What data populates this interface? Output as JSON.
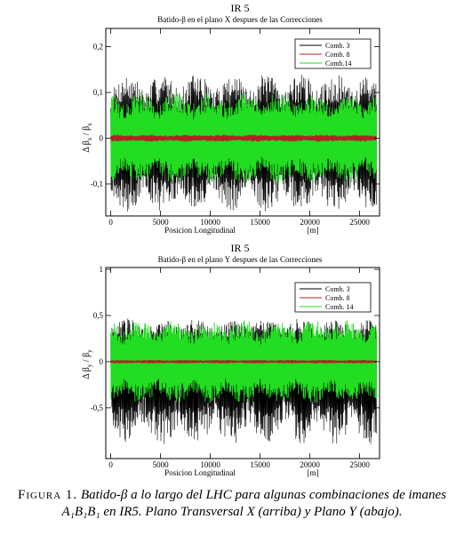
{
  "chart_data": [
    {
      "type": "line",
      "title": "IR 5",
      "subtitle": "Batido-β en el plano X despues de las Correcciones",
      "xlabel": "Posicion Longitudinal",
      "xunit": "[m]",
      "ylabel_main": "Δ β",
      "ylabel_sub1": "x",
      "ylabel_mid": " / β",
      "ylabel_sub2": "x",
      "xlim": [
        -500,
        27000
      ],
      "ylim": [
        -0.17,
        0.24
      ],
      "xticks": [
        0,
        5000,
        10000,
        15000,
        20000,
        25000
      ],
      "xtick_labels": [
        "0",
        "5000",
        "10000",
        "15000",
        "20000",
        "25000"
      ],
      "yticks": [
        -0.1,
        0,
        0.1,
        0.2
      ],
      "ytick_labels": [
        "-0,1",
        "0",
        "0,1",
        "0,2"
      ],
      "legend_position": "top-right",
      "series": [
        {
          "name": "Comb. 3",
          "color": "#000000",
          "amplitude_max": 0.14,
          "amplitude_min": -0.16
        },
        {
          "name": "Comb. 8",
          "color": "#b22222",
          "amplitude_max": 0.008,
          "amplitude_min": -0.008
        },
        {
          "name": "Comb.14",
          "color": "#22dd22",
          "amplitude_max": 0.1,
          "amplitude_min": -0.1
        }
      ]
    },
    {
      "type": "line",
      "title": "IR 5",
      "subtitle": "Batido-β en el plano Y despues de las Correcciones",
      "xlabel": "Posicion Longitudinal",
      "xunit": "[m]",
      "ylabel_main": "Δ β",
      "ylabel_sub1": "y",
      "ylabel_mid": " / β",
      "ylabel_sub2": "y",
      "xlim": [
        -500,
        27000
      ],
      "ylim": [
        -1.05,
        1.02
      ],
      "xticks": [
        0,
        5000,
        10000,
        15000,
        20000,
        25000
      ],
      "xtick_labels": [
        "0",
        "5000",
        "10000",
        "15000",
        "20000",
        "25000"
      ],
      "yticks": [
        -0.5,
        0,
        0.5,
        1
      ],
      "ytick_labels": [
        "-0,5",
        "0",
        "0,5",
        "1"
      ],
      "legend_position": "top-right",
      "series": [
        {
          "name": "Comb. 3",
          "color": "#000000",
          "amplitude_max": 0.47,
          "amplitude_min": -0.9
        },
        {
          "name": "Comb. 8",
          "color": "#b22222",
          "amplitude_max": 0.02,
          "amplitude_min": -0.02
        },
        {
          "name": "Comb. 14",
          "color": "#22dd22",
          "amplitude_max": 0.45,
          "amplitude_min": -0.45
        }
      ]
    }
  ],
  "caption": {
    "label": "Figura 1.",
    "text1": " Batido-β a lo largo del LHC para algunas combinaciones de imanes",
    "math": "A₁B₁B₁",
    "text2": " en IR5. Plano Transversal X (arriba) y Plano Y (abajo)."
  }
}
